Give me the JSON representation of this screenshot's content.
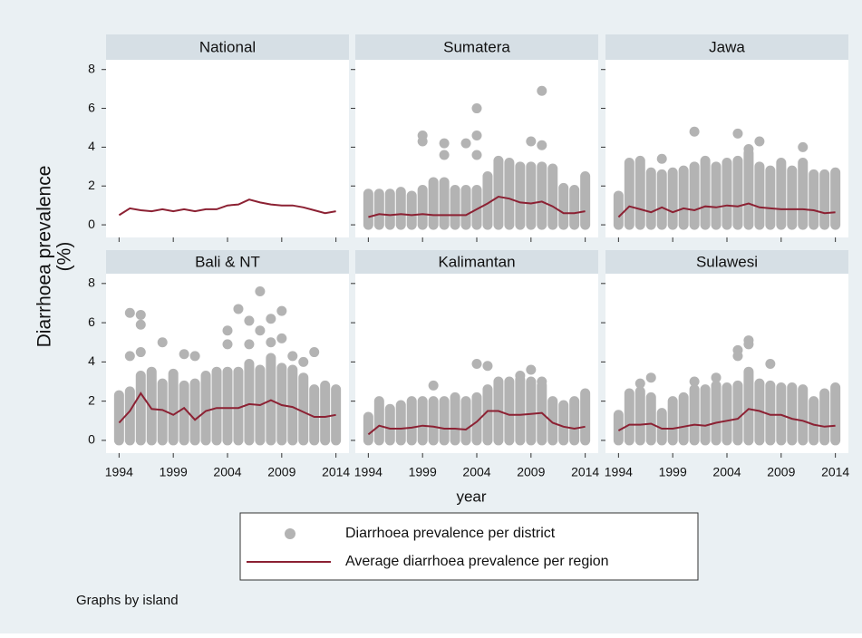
{
  "chart_data": {
    "type": "scatter",
    "y_label": [
      "Diarrhoea prevalence",
      "(%)"
    ],
    "x_label": "year",
    "note": "Graphs by island",
    "legend": [
      {
        "name": "Diarrhoea prevalence per district",
        "color": "#b3b3b3",
        "marker": "dot"
      },
      {
        "name": "Average diarrhoea prevalence per region",
        "color": "#8c2133",
        "marker": "line"
      }
    ],
    "xlim": [
      1992.8,
      2015.2
    ],
    "ylim": [
      -0.65,
      8.5
    ],
    "xticks": [
      1994,
      1999,
      2004,
      2009,
      2014
    ],
    "yticks": [
      0,
      2,
      4,
      6,
      8
    ],
    "x": [
      1994,
      1995,
      1996,
      1997,
      1998,
      1999,
      2000,
      2001,
      2002,
      2003,
      2004,
      2005,
      2006,
      2007,
      2008,
      2009,
      2010,
      2011,
      2012,
      2013,
      2014
    ],
    "panels": [
      {
        "title": "National",
        "average": [
          0.5,
          0.85,
          0.75,
          0.7,
          0.8,
          0.7,
          0.8,
          0.7,
          0.8,
          0.8,
          1.0,
          1.05,
          1.3,
          1.15,
          1.05,
          1.0,
          1.0,
          0.9,
          0.75,
          0.6,
          0.7
        ]
      },
      {
        "title": "Sumatera",
        "average": [
          0.4,
          0.55,
          0.5,
          0.55,
          0.5,
          0.55,
          0.5,
          0.5,
          0.5,
          0.5,
          0.8,
          1.1,
          1.45,
          1.35,
          1.15,
          1.1,
          1.2,
          0.95,
          0.6,
          0.6,
          0.7
        ],
        "district_max": [
          1.6,
          1.6,
          1.6,
          1.7,
          1.5,
          1.8,
          2.2,
          2.2,
          1.8,
          1.8,
          1.8,
          2.5,
          3.3,
          3.2,
          3.0,
          3.0,
          3.0,
          2.9,
          1.9,
          1.8,
          2.5
        ],
        "outliers": {
          "x": [
            1999,
            1999,
            2001,
            2001,
            2003,
            2004,
            2004,
            2004,
            2009,
            2010,
            2010
          ],
          "values": [
            4.6,
            4.3,
            4.2,
            3.6,
            4.2,
            6.0,
            4.6,
            3.6,
            4.3,
            6.9,
            4.1
          ]
        }
      },
      {
        "title": "Jawa",
        "average": [
          0.4,
          0.95,
          0.8,
          0.65,
          0.9,
          0.65,
          0.85,
          0.75,
          0.95,
          0.9,
          1.0,
          0.95,
          1.1,
          0.9,
          0.85,
          0.8,
          0.8,
          0.8,
          0.75,
          0.6,
          0.65
        ],
        "district_max": [
          1.5,
          3.2,
          3.3,
          2.7,
          2.6,
          2.7,
          2.8,
          3.0,
          3.3,
          3.0,
          3.2,
          3.3,
          3.7,
          3.0,
          2.8,
          3.2,
          2.8,
          3.2,
          2.6,
          2.6,
          2.7
        ],
        "outliers": {
          "x": [
            1998,
            2001,
            2005,
            2006,
            2007,
            2011
          ],
          "values": [
            3.4,
            4.8,
            4.7,
            3.9,
            4.3,
            4.0
          ]
        }
      },
      {
        "title": "Bali & NT",
        "average": [
          0.9,
          1.5,
          2.4,
          1.6,
          1.55,
          1.3,
          1.65,
          1.05,
          1.5,
          1.65,
          1.65,
          1.65,
          1.85,
          1.8,
          2.05,
          1.8,
          1.7,
          1.45,
          1.2,
          1.2,
          1.3
        ],
        "district_max": [
          2.3,
          2.5,
          3.3,
          3.5,
          2.9,
          3.4,
          2.8,
          2.9,
          3.3,
          3.5,
          3.5,
          3.5,
          3.9,
          3.6,
          4.2,
          3.7,
          3.6,
          3.2,
          2.6,
          2.8,
          2.6
        ],
        "outliers": {
          "x": [
            1995,
            1995,
            1996,
            1996,
            1996,
            1998,
            2000,
            2001,
            2004,
            2004,
            2005,
            2006,
            2006,
            2007,
            2007,
            2008,
            2008,
            2009,
            2009,
            2010,
            2011,
            2012
          ],
          "values": [
            6.5,
            4.3,
            6.4,
            5.9,
            4.5,
            5.0,
            4.4,
            4.3,
            5.6,
            4.9,
            6.7,
            6.1,
            4.9,
            7.6,
            5.6,
            6.2,
            5.0,
            6.6,
            5.2,
            4.3,
            4.0,
            4.5
          ]
        }
      },
      {
        "title": "Kalimantan",
        "average": [
          0.3,
          0.75,
          0.6,
          0.6,
          0.65,
          0.75,
          0.7,
          0.6,
          0.6,
          0.55,
          0.95,
          1.5,
          1.5,
          1.3,
          1.3,
          1.35,
          1.4,
          0.9,
          0.7,
          0.6,
          0.7
        ],
        "district_max": [
          1.2,
          2.0,
          1.6,
          1.8,
          2.0,
          2.0,
          2.0,
          2.0,
          2.2,
          2.0,
          2.2,
          2.6,
          3.0,
          3.0,
          3.1,
          3.0,
          2.8,
          2.0,
          1.8,
          2.0,
          2.4
        ],
        "outliers": {
          "x": [
            2000,
            2004,
            2005,
            2008,
            2009,
            2010
          ],
          "values": [
            2.8,
            3.9,
            3.8,
            3.3,
            3.6,
            3.0
          ]
        }
      },
      {
        "title": "Sulawesi",
        "average": [
          0.5,
          0.8,
          0.8,
          0.85,
          0.6,
          0.6,
          0.7,
          0.8,
          0.75,
          0.9,
          1.0,
          1.1,
          1.6,
          1.5,
          1.3,
          1.3,
          1.1,
          1.0,
          0.8,
          0.7,
          0.75
        ],
        "district_max": [
          1.3,
          2.4,
          2.5,
          2.2,
          1.4,
          2.0,
          2.2,
          2.6,
          2.6,
          2.8,
          2.7,
          2.8,
          3.5,
          2.9,
          2.8,
          2.7,
          2.7,
          2.6,
          2.0,
          2.4,
          2.7
        ],
        "outliers": {
          "x": [
            1996,
            1997,
            2001,
            2003,
            2005,
            2005,
            2006,
            2006,
            2008
          ],
          "values": [
            2.9,
            3.2,
            3.0,
            3.2,
            4.6,
            4.3,
            5.1,
            4.9,
            3.9
          ]
        }
      }
    ]
  }
}
